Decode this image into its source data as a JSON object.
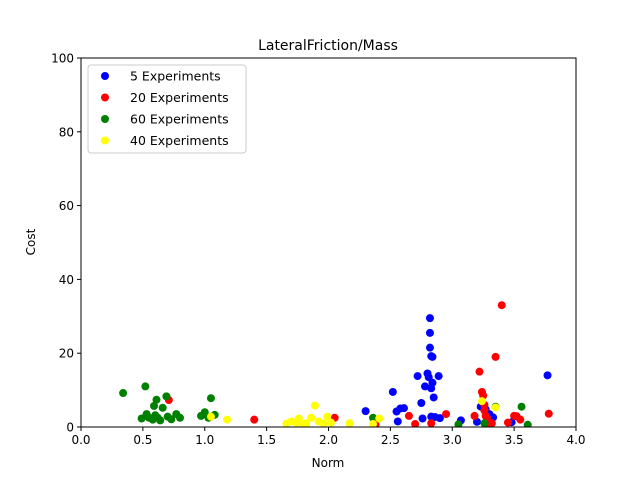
{
  "chart_data": {
    "type": "scatter",
    "title": "LateralFriction/Mass",
    "xlabel": "Norm",
    "ylabel": "Cost",
    "xlim": [
      0.0,
      4.0
    ],
    "ylim": [
      0,
      100
    ],
    "xticks": [
      "0.0",
      "0.5",
      "1.0",
      "1.5",
      "2.0",
      "2.5",
      "3.0",
      "3.5",
      "4.0"
    ],
    "xtick_values": [
      0.0,
      0.5,
      1.0,
      1.5,
      2.0,
      2.5,
      3.0,
      3.5,
      4.0
    ],
    "yticks": [
      "0",
      "20",
      "40",
      "60",
      "80",
      "100"
    ],
    "ytick_values": [
      0,
      20,
      40,
      60,
      80,
      100
    ],
    "grid": false,
    "legend_position": "top-left",
    "series": [
      {
        "name": "5 Experiments",
        "color": "#0000ff",
        "points": [
          [
            2.3,
            4.3
          ],
          [
            2.52,
            9.5
          ],
          [
            2.55,
            4.2
          ],
          [
            2.58,
            5.0
          ],
          [
            2.61,
            5.1
          ],
          [
            2.56,
            1.5
          ],
          [
            2.72,
            13.8
          ],
          [
            2.75,
            6.5
          ],
          [
            2.76,
            2.3
          ],
          [
            2.78,
            11.0
          ],
          [
            2.8,
            14.5
          ],
          [
            2.82,
            29.5
          ],
          [
            2.82,
            25.5
          ],
          [
            2.82,
            21.5
          ],
          [
            2.83,
            19.2
          ],
          [
            2.84,
            19.0
          ],
          [
            2.81,
            13.5
          ],
          [
            2.83,
            10.5
          ],
          [
            2.85,
            8.0
          ],
          [
            2.84,
            12.0
          ],
          [
            2.83,
            2.8
          ],
          [
            2.86,
            2.7
          ],
          [
            2.89,
            13.8
          ],
          [
            2.9,
            2.4
          ],
          [
            3.07,
            1.8
          ],
          [
            3.2,
            1.4
          ],
          [
            3.23,
            5.5
          ],
          [
            3.27,
            4.8
          ],
          [
            3.3,
            3.5
          ],
          [
            3.33,
            2.6
          ],
          [
            3.48,
            1.3
          ],
          [
            3.77,
            14.0
          ]
        ]
      },
      {
        "name": "20 Experiments",
        "color": "#ff0000",
        "points": [
          [
            0.71,
            7.3
          ],
          [
            1.4,
            2.0
          ],
          [
            2.05,
            2.5
          ],
          [
            2.38,
            0.6
          ],
          [
            2.65,
            3.0
          ],
          [
            2.7,
            0.8
          ],
          [
            2.83,
            1.0
          ],
          [
            2.95,
            3.5
          ],
          [
            3.18,
            3.0
          ],
          [
            3.22,
            15.0
          ],
          [
            3.24,
            9.5
          ],
          [
            3.25,
            8.5
          ],
          [
            3.26,
            6.0
          ],
          [
            3.26,
            4.5
          ],
          [
            3.27,
            3.0
          ],
          [
            3.28,
            2.5
          ],
          [
            3.29,
            1.5
          ],
          [
            3.3,
            1.0
          ],
          [
            3.32,
            1.0
          ],
          [
            3.35,
            19.0
          ],
          [
            3.4,
            33.0
          ],
          [
            3.45,
            1.2
          ],
          [
            3.5,
            3.0
          ],
          [
            3.52,
            2.9
          ],
          [
            3.55,
            2.0
          ],
          [
            3.78,
            3.6
          ]
        ]
      },
      {
        "name": "60 Experiments",
        "color": "#008000",
        "points": [
          [
            0.34,
            9.2
          ],
          [
            0.49,
            2.3
          ],
          [
            0.52,
            11.0
          ],
          [
            0.53,
            3.5
          ],
          [
            0.55,
            2.5
          ],
          [
            0.58,
            2.0
          ],
          [
            0.59,
            5.7
          ],
          [
            0.6,
            3.2
          ],
          [
            0.61,
            7.4
          ],
          [
            0.62,
            2.5
          ],
          [
            0.64,
            1.8
          ],
          [
            0.66,
            5.2
          ],
          [
            0.69,
            8.3
          ],
          [
            0.7,
            2.8
          ],
          [
            0.73,
            2.1
          ],
          [
            0.77,
            3.5
          ],
          [
            0.8,
            2.5
          ],
          [
            0.97,
            3.0
          ],
          [
            1.0,
            4.0
          ],
          [
            1.03,
            2.5
          ],
          [
            1.05,
            7.8
          ],
          [
            1.08,
            3.3
          ],
          [
            2.36,
            2.5
          ],
          [
            3.05,
            0.7
          ],
          [
            3.26,
            1.0
          ],
          [
            3.35,
            5.5
          ],
          [
            3.56,
            5.5
          ],
          [
            3.61,
            0.6
          ]
        ]
      },
      {
        "name": "40 Experiments",
        "color": "#ffff00",
        "points": [
          [
            1.05,
            2.8
          ],
          [
            1.18,
            2.0
          ],
          [
            1.66,
            0.9
          ],
          [
            1.7,
            1.5
          ],
          [
            1.74,
            1.2
          ],
          [
            1.76,
            2.3
          ],
          [
            1.79,
            0.8
          ],
          [
            1.82,
            1.0
          ],
          [
            1.86,
            2.5
          ],
          [
            1.89,
            5.8
          ],
          [
            1.92,
            1.5
          ],
          [
            1.96,
            0.9
          ],
          [
            1.99,
            2.8
          ],
          [
            2.02,
            1.2
          ],
          [
            2.17,
            1.0
          ],
          [
            2.36,
            0.8
          ],
          [
            2.41,
            2.3
          ],
          [
            3.24,
            7.0
          ],
          [
            3.35,
            5.3
          ]
        ]
      }
    ]
  }
}
